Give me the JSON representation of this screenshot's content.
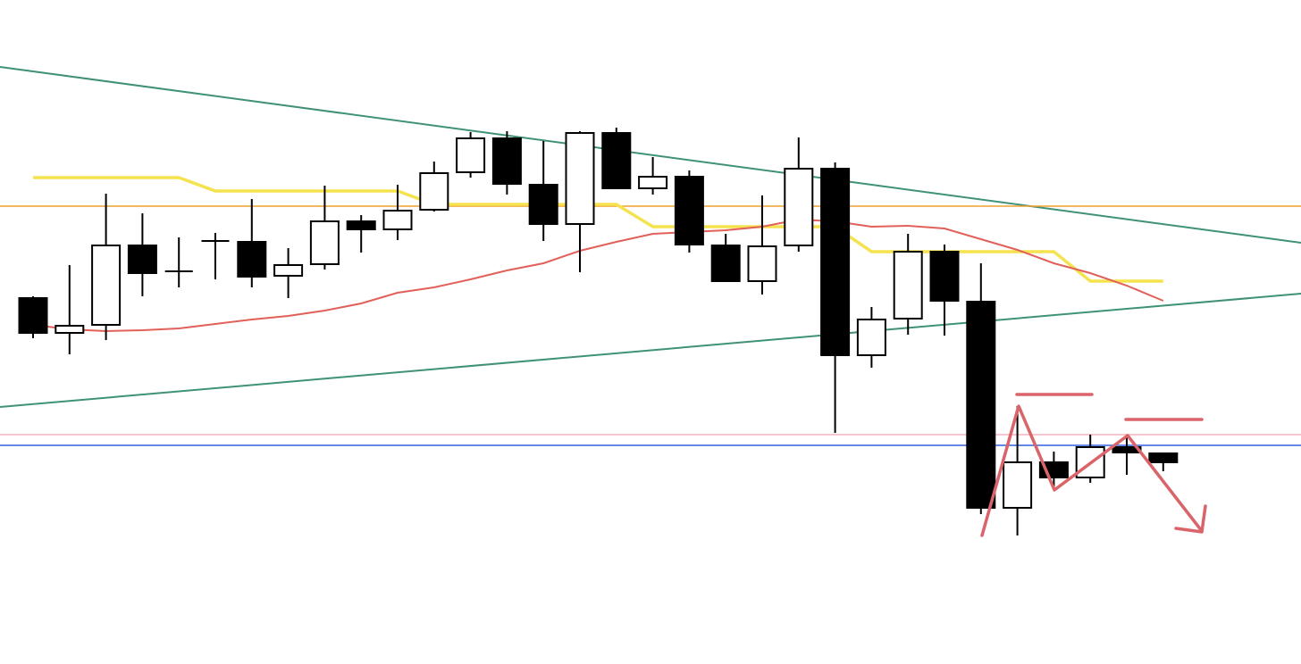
{
  "chart_data": {
    "type": "candlestick",
    "ylim": [
      0,
      744
    ],
    "candles": {
      "open": [
        410,
        371,
        380,
        469,
        440,
        474,
        473,
        435,
        448,
        496,
        487,
        509,
        551,
        589,
        537,
        493,
        595,
        533,
        546,
        469,
        429,
        469,
        555,
        346,
        387,
        462,
        406,
        175,
        226,
        209,
        243,
        236
      ],
      "high": [
        412,
        447,
        527,
        505,
        478,
        483,
        521,
        466,
        536,
        503,
        537,
        563,
        596,
        597,
        586,
        597,
        601,
        568,
        553,
        482,
        525,
        590,
        562,
        400,
        482,
        470,
        449,
        289,
        238,
        257,
        257,
        236
      ],
      "low": [
        365,
        347,
        363,
        412,
        422,
        431,
        422,
        410,
        442,
        461,
        475,
        507,
        545,
        526,
        474,
        439,
        532,
        526,
        461,
        429,
        414,
        462,
        259,
        332,
        369,
        368,
        168,
        144,
        196,
        203,
        212,
        216
      ],
      "close": [
        371,
        379,
        469,
        438,
        440,
        474,
        434,
        447,
        496,
        487,
        508,
        550,
        589,
        538,
        493,
        595,
        533,
        546,
        470,
        429,
        468,
        555,
        346,
        386,
        462,
        407,
        175,
        226,
        209,
        243,
        237,
        226
      ],
      "up_color": "#ffffff",
      "down_color": "#000000"
    },
    "series": [
      {
        "color": "#f5e24f",
        "values": [
          545,
          545,
          545,
          545,
          545,
          530,
          530,
          530,
          530,
          530,
          530,
          515,
          515,
          515,
          515,
          515,
          515,
          490,
          490,
          490,
          490,
          490,
          490,
          462,
          462,
          462,
          462,
          462,
          462,
          429,
          429,
          429
        ]
      },
      {
        "color": "#e2605a",
        "values": [
          380,
          375,
          373,
          374,
          376,
          381,
          386,
          390,
          396,
          404,
          416,
          422,
          431,
          441,
          449,
          463,
          473,
          482,
          484,
          486,
          490,
          498,
          496,
          490,
          491,
          488,
          476,
          464,
          449,
          438,
          424,
          407
        ]
      }
    ],
    "levels": [
      {
        "color": "#f0a030",
        "value": 513
      },
      {
        "color": "#f4b3c0",
        "value": 257
      },
      {
        "color": "#3060e0",
        "value": 245
      }
    ]
  }
}
